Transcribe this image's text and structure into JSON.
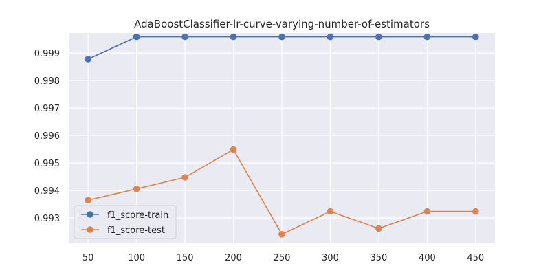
{
  "chart_data": {
    "type": "line",
    "title": "AdaBoostClassifier-lr-curve-varying-number-of-estimators",
    "xlabel": "",
    "ylabel": "",
    "x": [
      50,
      100,
      150,
      200,
      250,
      300,
      350,
      400,
      450
    ],
    "x_ticks": [
      "50",
      "100",
      "150",
      "200",
      "250",
      "300",
      "350",
      "400",
      "450"
    ],
    "y_ticks": [
      {
        "value": 0.993,
        "label": "0.993"
      },
      {
        "value": 0.994,
        "label": "0.994"
      },
      {
        "value": 0.995,
        "label": "0.995"
      },
      {
        "value": 0.996,
        "label": "0.996"
      },
      {
        "value": 0.997,
        "label": "0.997"
      },
      {
        "value": 0.998,
        "label": "0.998"
      },
      {
        "value": 0.999,
        "label": "0.999"
      }
    ],
    "xlim": [
      30,
      470
    ],
    "ylim": [
      0.99208,
      0.99973
    ],
    "grid": true,
    "legend_position": "lower-left",
    "series": [
      {
        "name": "f1_score-train",
        "color": "#4c72b0",
        "values": [
          0.99878,
          0.99959,
          0.99959,
          0.99959,
          0.99959,
          0.99959,
          0.99959,
          0.99959,
          0.99959
        ]
      },
      {
        "name": "f1_score-test",
        "color": "#dd8452",
        "values": [
          0.99365,
          0.99406,
          0.99448,
          0.99549,
          0.99241,
          0.99324,
          0.99262,
          0.99324,
          0.99324
        ]
      }
    ]
  }
}
